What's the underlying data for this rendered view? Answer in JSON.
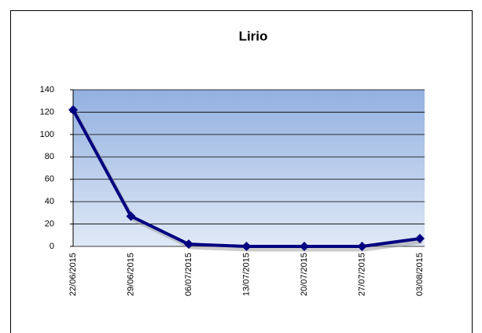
{
  "chart_data": {
    "type": "line",
    "title": "Lirio",
    "categories": [
      "22/06/2015",
      "29/06/2015",
      "06/07/2015",
      "13/07/2015",
      "20/07/2015",
      "27/07/2015",
      "03/08/2015"
    ],
    "series": [
      {
        "name": "Lirio",
        "color": "#000080",
        "values": [
          122,
          27,
          2,
          0,
          0,
          0,
          7
        ]
      }
    ],
    "ylim": [
      0,
      140
    ],
    "yticks": [
      0,
      20,
      40,
      60,
      80,
      100,
      120,
      140
    ],
    "grid": true
  }
}
